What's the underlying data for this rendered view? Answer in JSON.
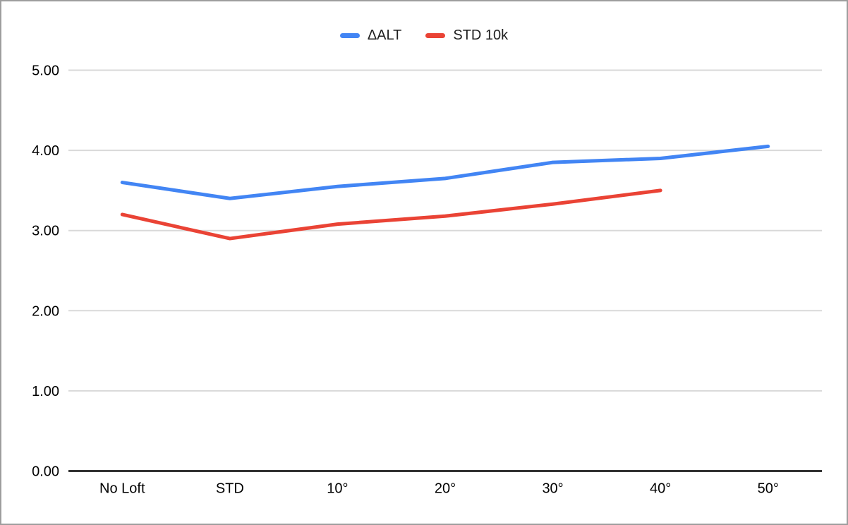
{
  "window": {
    "background": "#ffffff",
    "border_color": "#9e9e9e"
  },
  "legend": {
    "position": "top",
    "items": [
      {
        "label": "ΔALT",
        "color": "#4285f4"
      },
      {
        "label": "STD 10k",
        "color": "#ea4335"
      }
    ]
  },
  "chart_data": {
    "type": "line",
    "title": "",
    "xlabel": "",
    "ylabel": "",
    "categories": [
      "No Loft",
      "STD",
      "10°",
      "20°",
      "30°",
      "40°",
      "50°"
    ],
    "series": [
      {
        "name": "ΔALT",
        "color": "#4285f4",
        "values": [
          3.6,
          3.4,
          3.55,
          3.65,
          3.85,
          3.9,
          4.05
        ]
      },
      {
        "name": "STD 10k",
        "color": "#ea4335",
        "values": [
          3.2,
          2.9,
          3.08,
          3.18,
          3.33,
          3.5,
          null
        ]
      }
    ],
    "ylim": [
      0,
      5
    ],
    "yticks": [
      {
        "value": 0,
        "label": "0.00"
      },
      {
        "value": 1,
        "label": "1.00"
      },
      {
        "value": 2,
        "label": "2.00"
      },
      {
        "value": 3,
        "label": "3.00"
      },
      {
        "value": 4,
        "label": "4.00"
      },
      {
        "value": 5,
        "label": "5.00"
      }
    ],
    "grid": true,
    "legend_position": "top",
    "styles": {
      "gridline_color": "#d9d9d9",
      "baseline_color": "#333333",
      "axis_text_color": "#000000",
      "gridline_width": 2,
      "baseline_width": 3,
      "line_width": 5
    }
  }
}
